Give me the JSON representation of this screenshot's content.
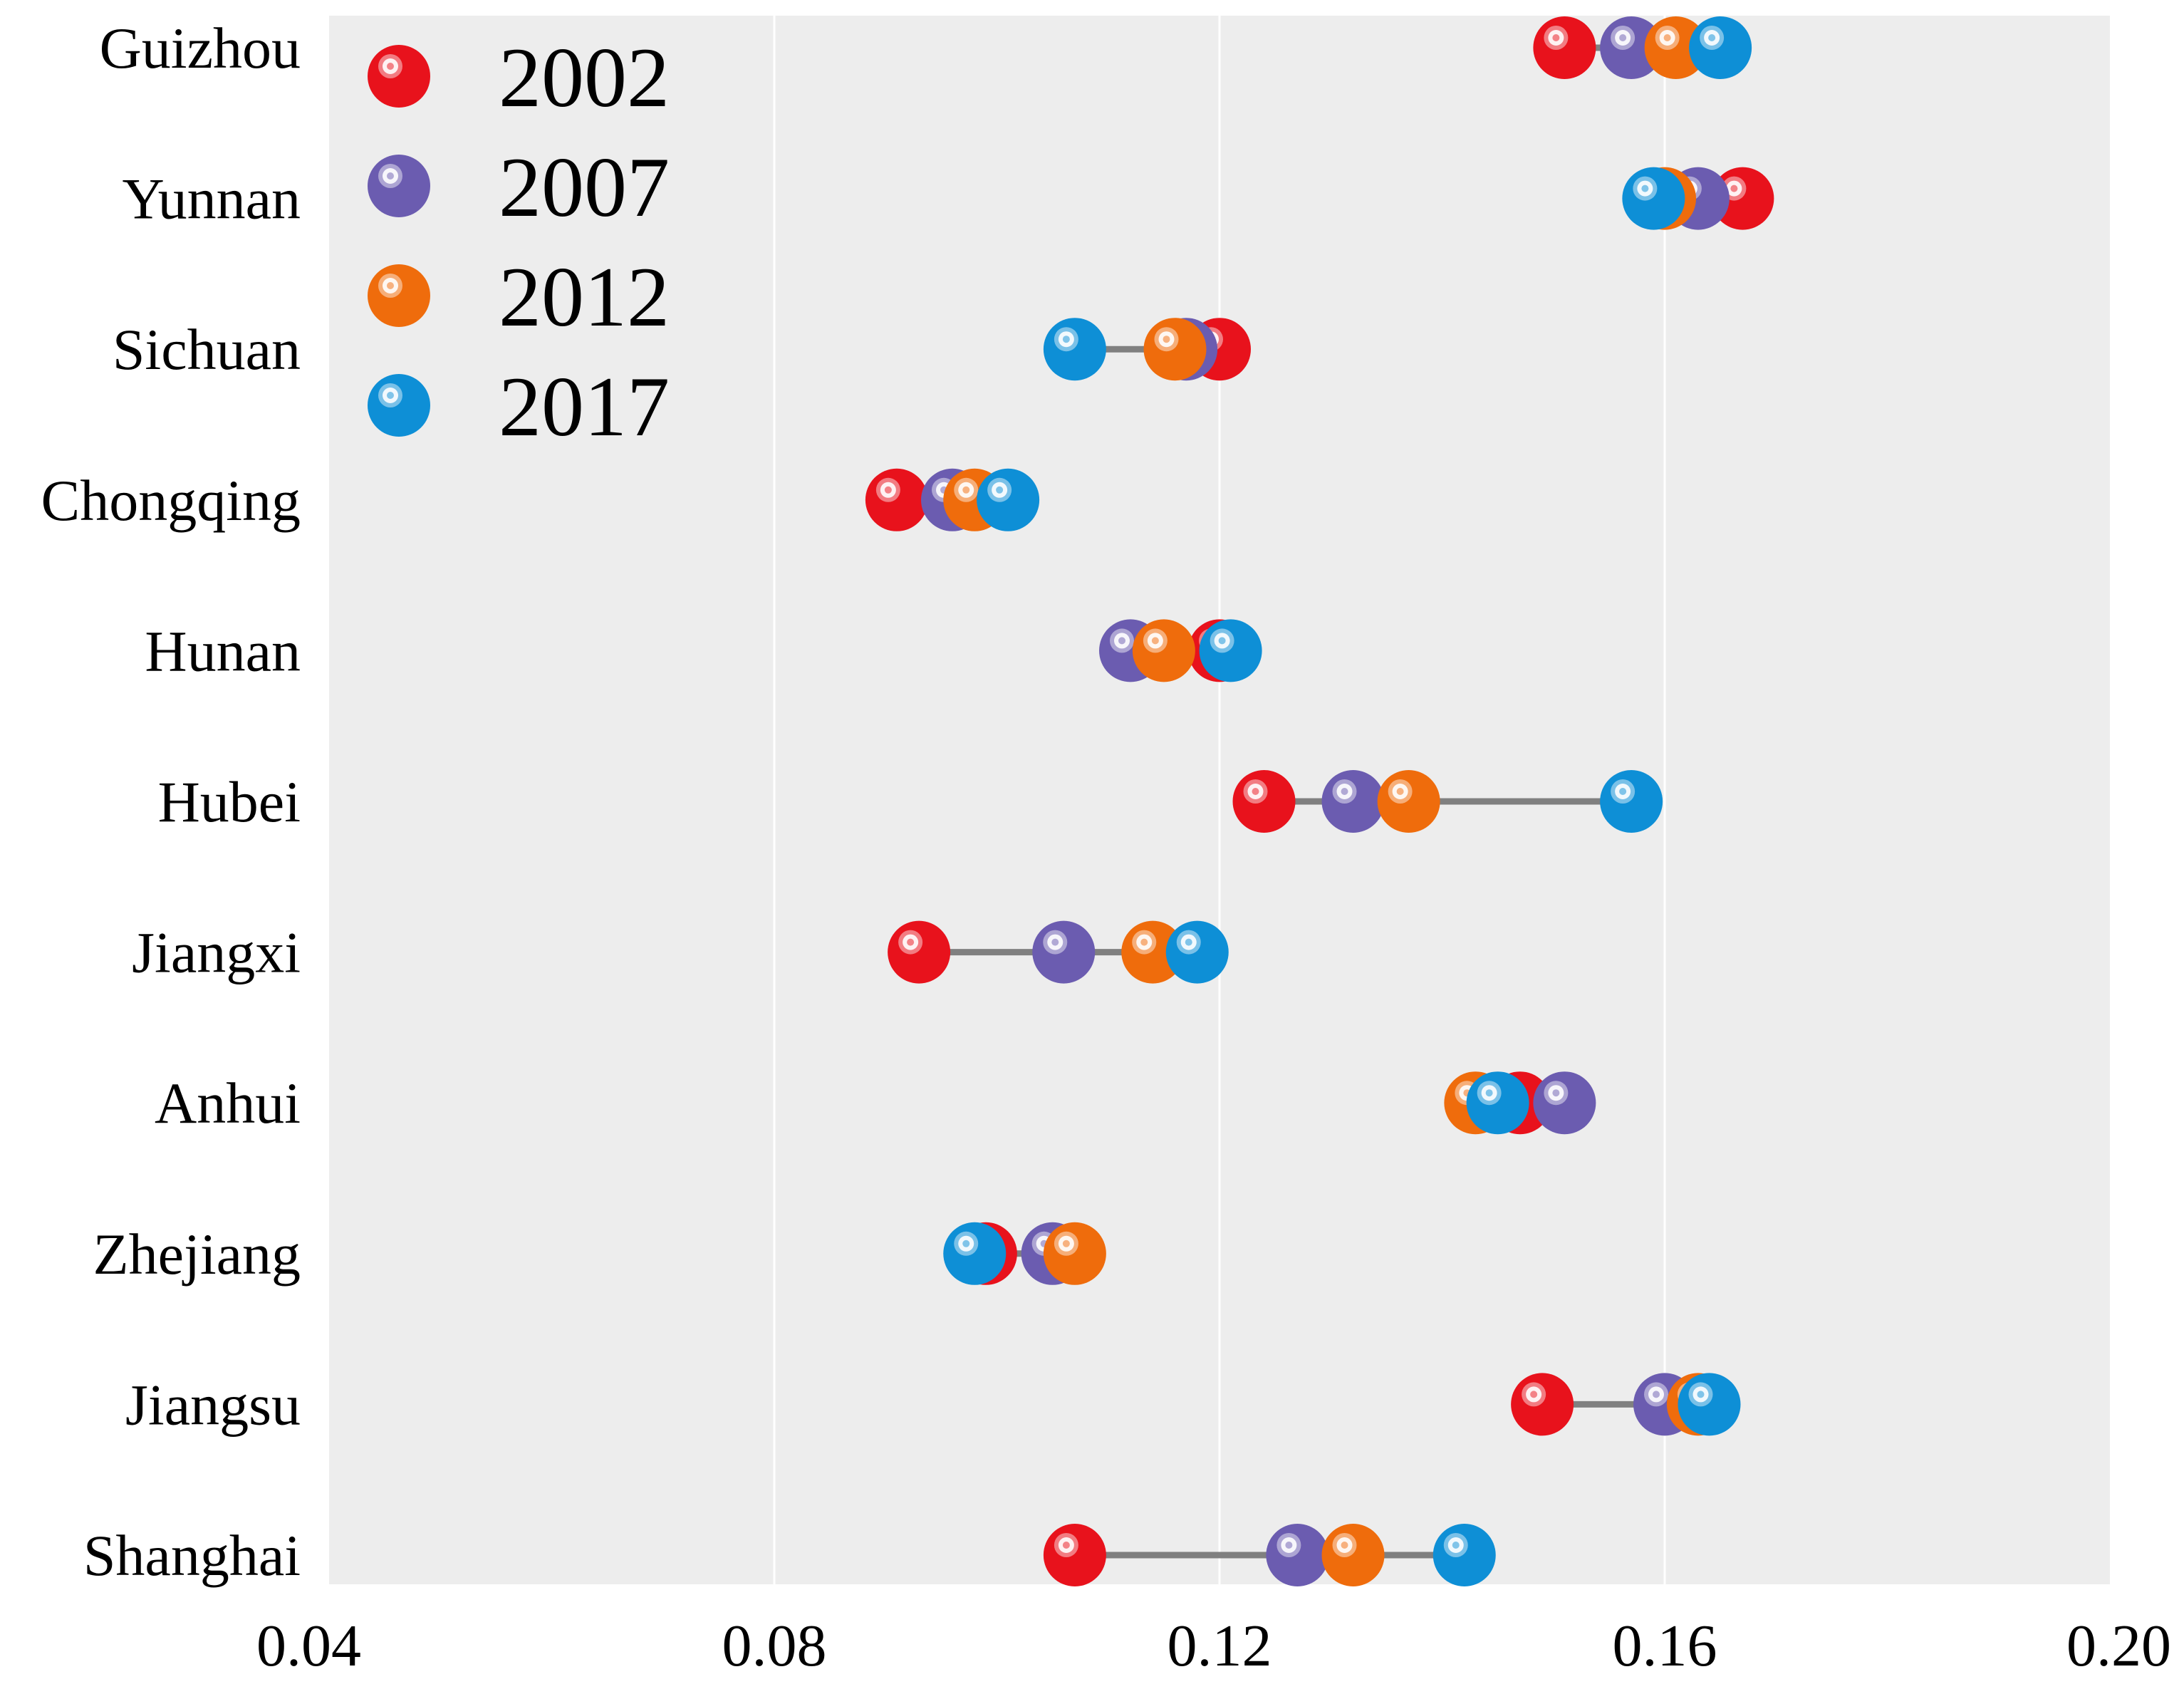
{
  "chart_data": {
    "type": "dumbbell-scatter",
    "title": "",
    "xlabel": "",
    "ylabel": "",
    "xlim": [
      0.04,
      0.2
    ],
    "x_ticks": [
      "0.04",
      "0.08",
      "0.12",
      "0.16",
      "0.20"
    ],
    "grid": "vertical",
    "legend_position": "top-left",
    "categories": [
      "Guizhou",
      "Yunnan",
      "Sichuan",
      "Chongqing",
      "Hunan",
      "Hubei",
      "Jiangxi",
      "Anhui",
      "Zhejiang",
      "Jiangsu",
      "Shanghai"
    ],
    "series": [
      {
        "name": "2002",
        "color": "#e8121c",
        "values": [
          0.151,
          0.167,
          0.12,
          0.091,
          0.12,
          0.124,
          0.093,
          0.147,
          0.099,
          0.149,
          0.107
        ]
      },
      {
        "name": "2007",
        "color": "#6b5cb0",
        "values": [
          0.157,
          0.163,
          0.117,
          0.096,
          0.112,
          0.132,
          0.106,
          0.151,
          0.105,
          0.16,
          0.127
        ]
      },
      {
        "name": "2012",
        "color": "#ef6c0c",
        "values": [
          0.161,
          0.16,
          0.116,
          0.098,
          0.115,
          0.137,
          0.114,
          0.143,
          0.107,
          0.163,
          0.132
        ]
      },
      {
        "name": "2017",
        "color": "#0e8fd6",
        "values": [
          0.165,
          0.159,
          0.107,
          0.101,
          0.121,
          0.157,
          0.118,
          0.145,
          0.098,
          0.164,
          0.142
        ]
      }
    ]
  }
}
